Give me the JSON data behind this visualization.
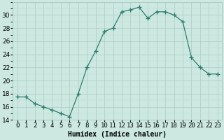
{
  "x": [
    0,
    1,
    2,
    3,
    4,
    5,
    6,
    7,
    8,
    9,
    10,
    11,
    12,
    13,
    14,
    15,
    16,
    17,
    18,
    19,
    20,
    21,
    22,
    23
  ],
  "y": [
    17.5,
    17.5,
    16.5,
    16.0,
    15.5,
    15.0,
    14.5,
    18.0,
    22.0,
    24.5,
    27.5,
    28.0,
    30.5,
    30.8,
    31.2,
    29.5,
    30.5,
    30.5,
    30.0,
    29.0,
    23.5,
    22.0,
    21.0,
    21.0
  ],
  "line_color": "#2e7d6e",
  "marker": "+",
  "marker_size": 4,
  "bg_color": "#cce8e0",
  "grid_color_major": "#aaccc4",
  "grid_color_minor": "#bbddd6",
  "xlabel": "Humidex (Indice chaleur)",
  "xlim": [
    -0.5,
    23.5
  ],
  "ylim": [
    14,
    32
  ],
  "yticks": [
    14,
    16,
    18,
    20,
    22,
    24,
    26,
    28,
    30
  ],
  "xticks": [
    0,
    1,
    2,
    3,
    4,
    5,
    6,
    7,
    8,
    9,
    10,
    11,
    12,
    13,
    14,
    15,
    16,
    17,
    18,
    19,
    20,
    21,
    22,
    23
  ],
  "label_fontsize": 7,
  "tick_fontsize": 6.5
}
